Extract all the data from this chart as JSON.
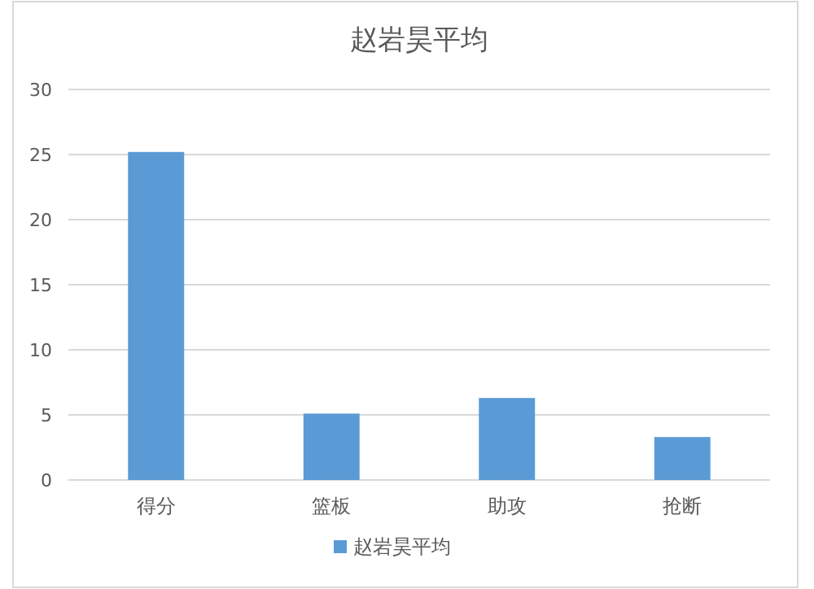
{
  "chart_data": {
    "type": "bar",
    "title": "赵岩昊平均",
    "categories": [
      "得分",
      "篮板",
      "助攻",
      "抢断"
    ],
    "series": [
      {
        "name": "赵岩昊平均",
        "color": "#5b9bd5",
        "values": [
          25.2,
          5.1,
          6.3,
          3.3
        ]
      }
    ],
    "ylim": [
      0,
      30
    ],
    "yticks": [
      0,
      5,
      10,
      15,
      20,
      25,
      30
    ],
    "grid": "y",
    "legend": "bottom"
  }
}
